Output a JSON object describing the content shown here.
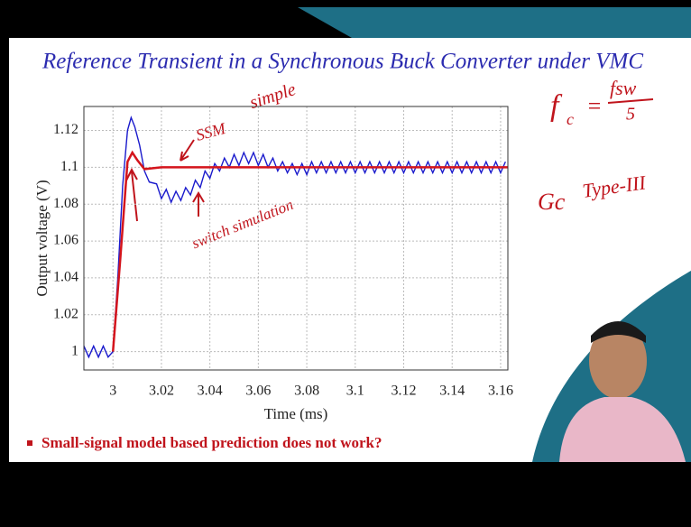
{
  "slide": {
    "title": "Reference Transient in a Synchronous Buck Converter under VMC",
    "bullet": "Small-signal model based prediction does not work?",
    "notes": [
      "simple",
      "SSM",
      "switch simulation",
      "f",
      "c",
      "=",
      "fsw",
      "5",
      "Gc",
      "Type-III"
    ]
  },
  "chart_data": {
    "type": "line",
    "xlabel": "Time (ms)",
    "ylabel": "Output voltage (V)",
    "xlim": [
      2.988,
      3.163
    ],
    "ylim": [
      0.99,
      1.133
    ],
    "xticks": [
      3,
      3.02,
      3.04,
      3.06,
      3.08,
      3.1,
      3.12,
      3.14,
      3.16
    ],
    "yticks": [
      1,
      1.02,
      1.04,
      1.06,
      1.08,
      1.1,
      1.12
    ],
    "grid": true,
    "series": [
      {
        "color": "#1a1acc",
        "x": [
          2.988,
          2.99,
          2.992,
          2.994,
          2.996,
          2.998,
          3.0,
          3.002,
          3.004,
          3.006,
          3.0075,
          3.009,
          3.011,
          3.013,
          3.015,
          3.018,
          3.02,
          3.022,
          3.024,
          3.026,
          3.028,
          3.03,
          3.032,
          3.034,
          3.036,
          3.038,
          3.04,
          3.042,
          3.044,
          3.046,
          3.048,
          3.05,
          3.052,
          3.054,
          3.056,
          3.058,
          3.06,
          3.062,
          3.064,
          3.066,
          3.068,
          3.07,
          3.072,
          3.074,
          3.076,
          3.078,
          3.08,
          3.082,
          3.084,
          3.086,
          3.088,
          3.09,
          3.092,
          3.094,
          3.096,
          3.098,
          3.1,
          3.102,
          3.104,
          3.106,
          3.108,
          3.11,
          3.112,
          3.114,
          3.116,
          3.118,
          3.12,
          3.122,
          3.124,
          3.126,
          3.128,
          3.13,
          3.132,
          3.134,
          3.136,
          3.138,
          3.14,
          3.142,
          3.144,
          3.146,
          3.148,
          3.15,
          3.152,
          3.154,
          3.156,
          3.158,
          3.16,
          3.162
        ],
        "values": [
          1.003,
          0.997,
          1.003,
          0.997,
          1.003,
          0.997,
          1.0,
          1.04,
          1.09,
          1.12,
          1.127,
          1.122,
          1.112,
          1.098,
          1.092,
          1.091,
          1.083,
          1.088,
          1.081,
          1.087,
          1.082,
          1.089,
          1.085,
          1.093,
          1.089,
          1.098,
          1.094,
          1.102,
          1.098,
          1.105,
          1.1,
          1.107,
          1.101,
          1.108,
          1.102,
          1.108,
          1.101,
          1.107,
          1.1,
          1.105,
          1.098,
          1.103,
          1.097,
          1.102,
          1.096,
          1.102,
          1.096,
          1.103,
          1.097,
          1.103,
          1.097,
          1.103,
          1.097,
          1.103,
          1.097,
          1.103,
          1.097,
          1.103,
          1.097,
          1.103,
          1.097,
          1.103,
          1.097,
          1.103,
          1.097,
          1.103,
          1.097,
          1.103,
          1.097,
          1.103,
          1.097,
          1.103,
          1.097,
          1.103,
          1.097,
          1.103,
          1.097,
          1.103,
          1.097,
          1.103,
          1.097,
          1.103,
          1.097,
          1.103,
          1.097,
          1.103,
          1.097,
          1.103
        ]
      },
      {
        "color": "#d4141c",
        "x": [
          3.0,
          3.003,
          3.006,
          3.008,
          3.01,
          3.013,
          3.02,
          3.163
        ],
        "values": [
          1.0,
          1.05,
          1.103,
          1.108,
          1.104,
          1.099,
          1.1,
          1.1
        ]
      }
    ]
  }
}
